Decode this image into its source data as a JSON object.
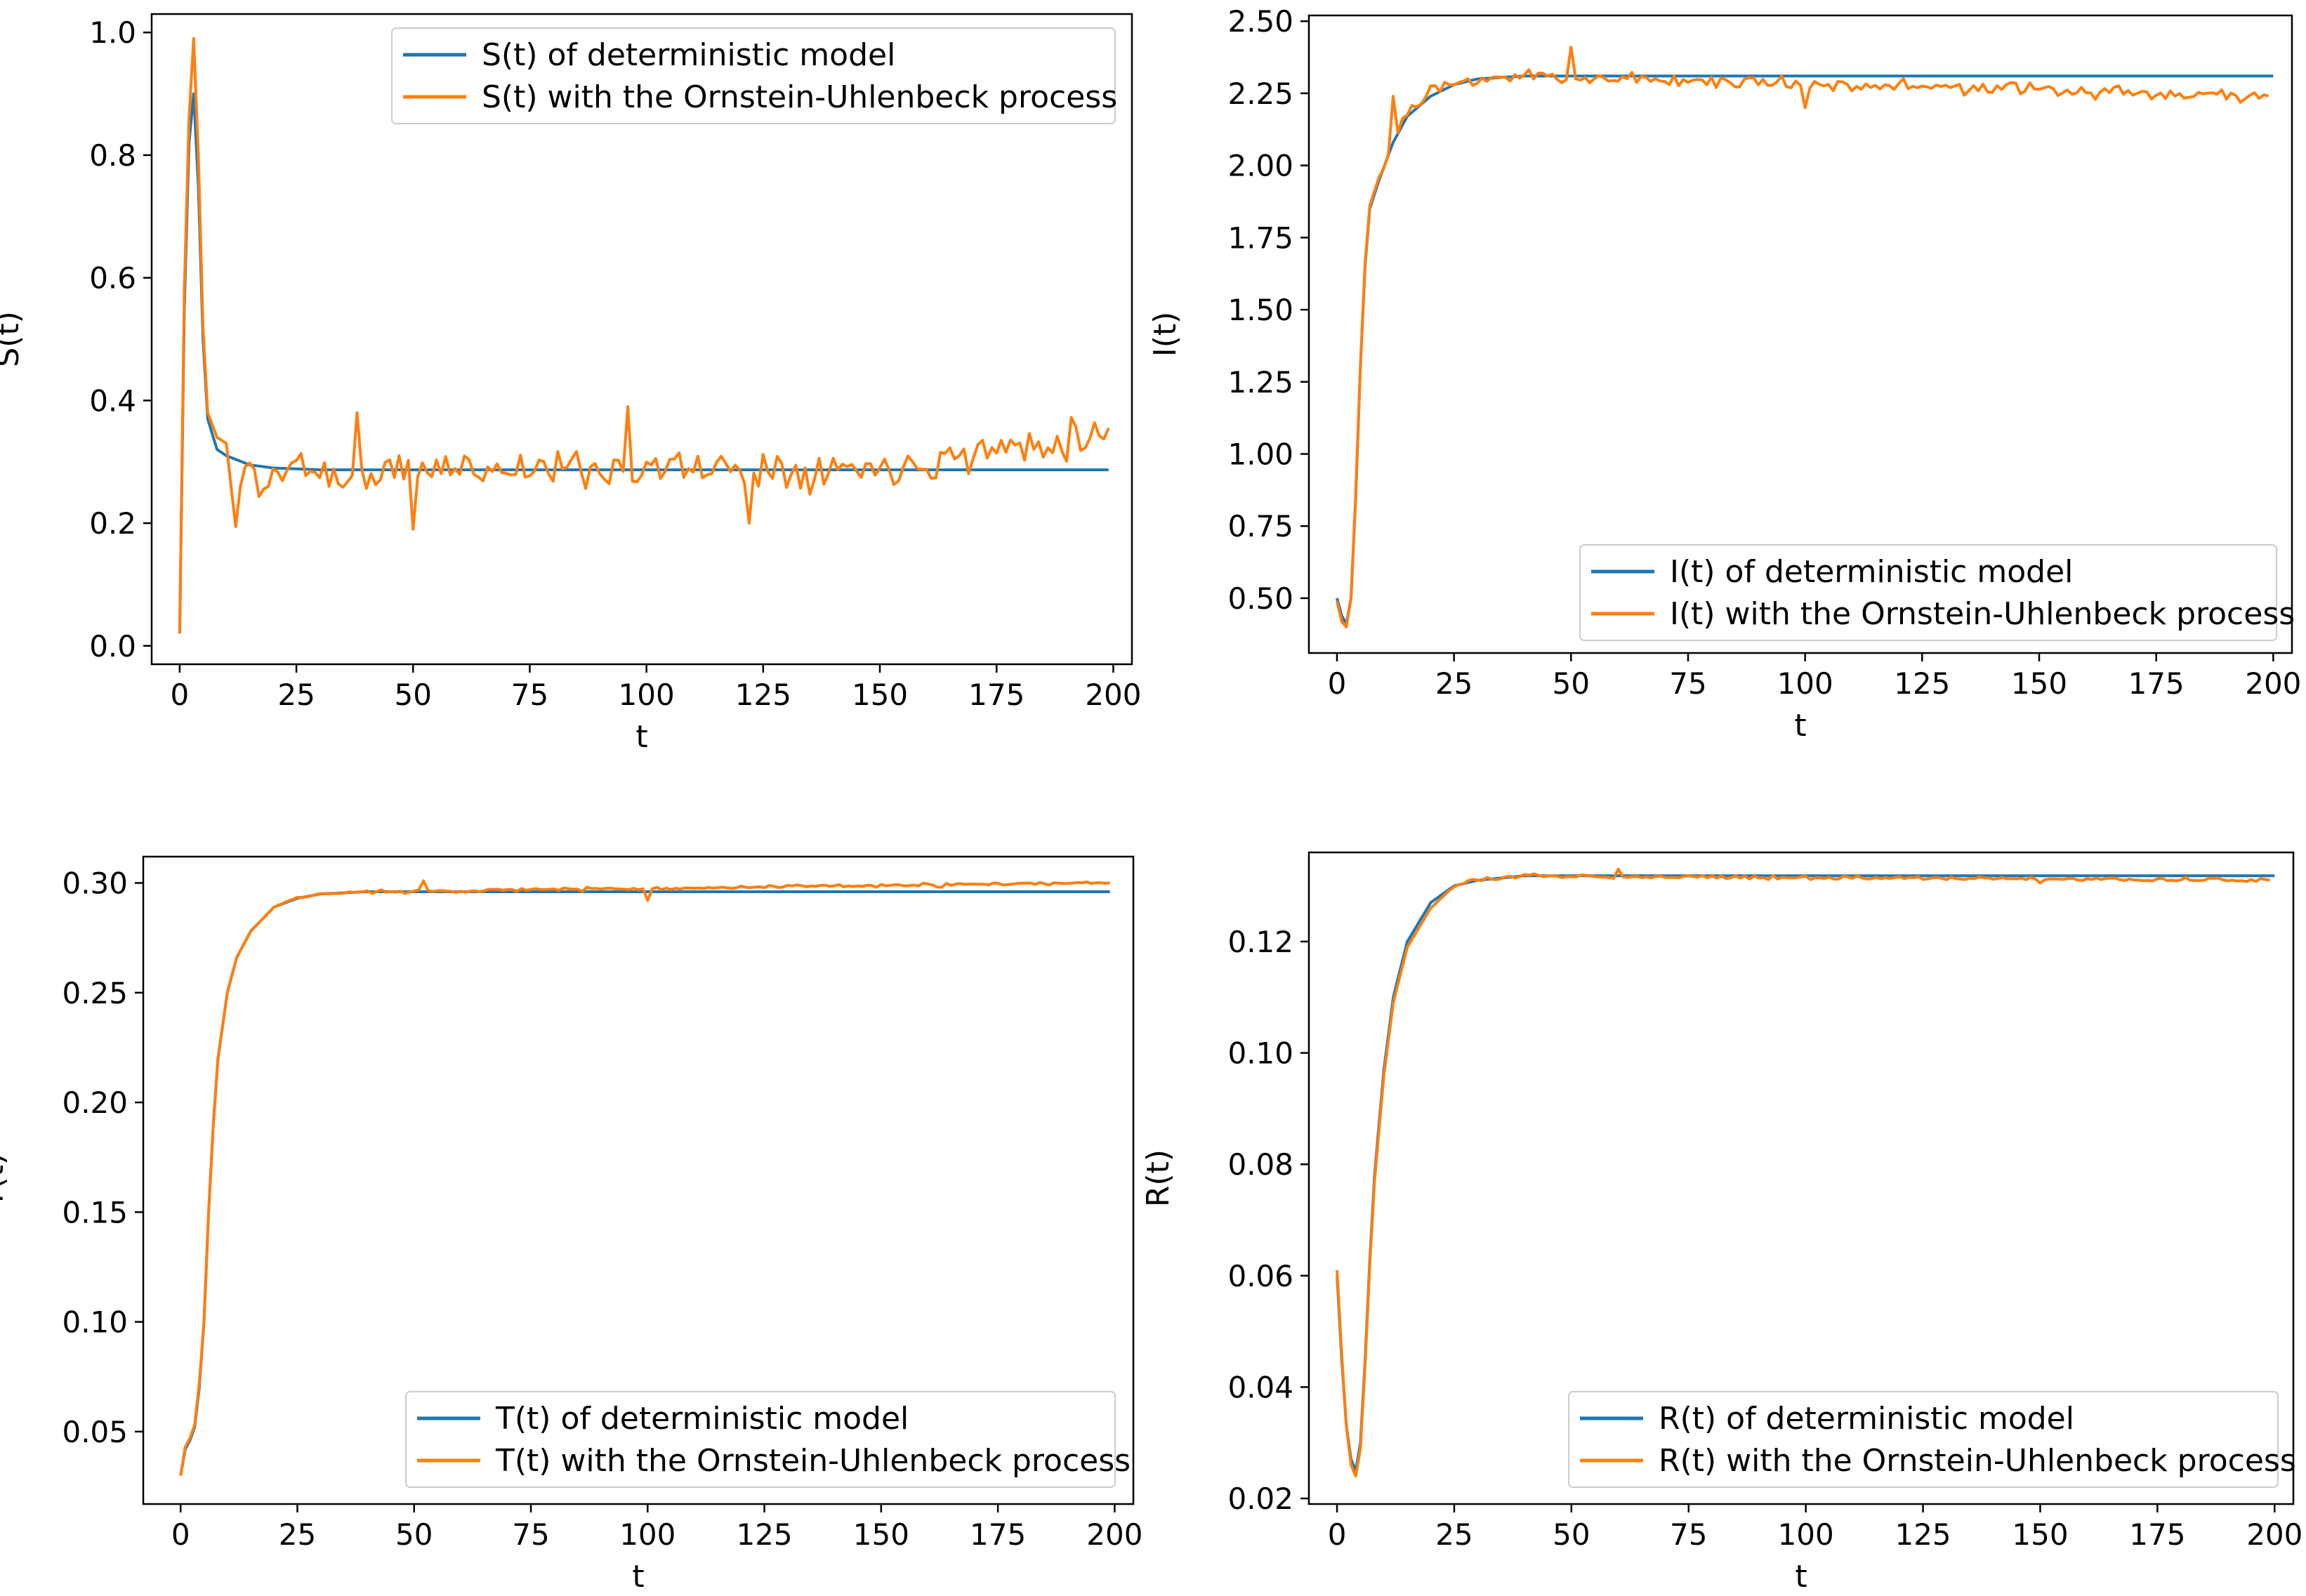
{
  "colors": {
    "deterministic": "#1f77b4",
    "ou": "#ff7f0e",
    "axes": "#000000"
  },
  "chart_data": [
    {
      "id": "S",
      "type": "line",
      "xlabel": "t",
      "ylabel": "S(t)",
      "xlim": [
        -6,
        204
      ],
      "ylim": [
        -0.03,
        1.03
      ],
      "xticks": [
        0,
        25,
        50,
        75,
        100,
        125,
        150,
        175,
        200
      ],
      "yticks": [
        0.0,
        0.2,
        0.4,
        0.6,
        0.8,
        1.0
      ],
      "ytick_labels": [
        "0.0",
        "0.2",
        "0.4",
        "0.6",
        "0.8",
        "1.0"
      ],
      "legend_position": "top-right",
      "series": [
        {
          "name": "S(t) of deterministic model",
          "color": "#1f77b4",
          "kind": "deterministic",
          "points": [
            [
              0,
              0.02
            ],
            [
              1,
              0.55
            ],
            [
              2,
              0.82
            ],
            [
              3,
              0.9
            ],
            [
              4,
              0.75
            ],
            [
              5,
              0.5
            ],
            [
              6,
              0.37
            ],
            [
              8,
              0.32
            ],
            [
              10,
              0.31
            ],
            [
              15,
              0.295
            ],
            [
              20,
              0.29
            ],
            [
              30,
              0.287
            ],
            [
              50,
              0.287
            ],
            [
              100,
              0.287
            ],
            [
              150,
              0.287
            ],
            [
              199,
              0.287
            ]
          ]
        },
        {
          "name": "S(t) with the Ornstein-Uhlenbeck process",
          "color": "#ff7f0e",
          "kind": "ou",
          "points": [
            [
              0,
              0.02
            ],
            [
              1,
              0.58
            ],
            [
              2,
              0.86
            ],
            [
              3,
              0.99
            ],
            [
              4,
              0.8
            ],
            [
              5,
              0.52
            ],
            [
              6,
              0.38
            ],
            [
              8,
              0.34
            ],
            [
              10,
              0.33
            ],
            [
              12,
              0.19
            ],
            [
              14,
              0.3
            ],
            [
              18,
              0.26
            ],
            [
              25,
              0.3
            ],
            [
              35,
              0.27
            ],
            [
              50,
              0.29
            ],
            [
              100,
              0.29
            ],
            [
              150,
              0.29
            ],
            [
              199,
              0.35
            ]
          ],
          "noise": {
            "amplitude": 0.045,
            "start": 12,
            "seed": 11,
            "extremes": [
              [
                38,
                0.38
              ],
              [
                50,
                0.19
              ],
              [
                96,
                0.39
              ],
              [
                122,
                0.2
              ],
              [
                199,
                0.355
              ]
            ]
          }
        }
      ]
    },
    {
      "id": "I",
      "type": "line",
      "xlabel": "t",
      "ylabel": "I(t)",
      "xlim": [
        -6,
        204
      ],
      "ylim": [
        0.31,
        2.52
      ],
      "xticks": [
        0,
        25,
        50,
        75,
        100,
        125,
        150,
        175,
        200
      ],
      "yticks": [
        0.5,
        0.75,
        1.0,
        1.25,
        1.5,
        1.75,
        2.0,
        2.25,
        2.5
      ],
      "ytick_labels": [
        "0.50",
        "0.75",
        "1.00",
        "1.25",
        "1.50",
        "1.75",
        "2.00",
        "2.25",
        "2.50"
      ],
      "legend_position": "bottom-right",
      "series": [
        {
          "name": "I(t) of deterministic model",
          "color": "#1f77b4",
          "kind": "deterministic",
          "points": [
            [
              0,
              0.5
            ],
            [
              1,
              0.44
            ],
            [
              2,
              0.41
            ],
            [
              3,
              0.5
            ],
            [
              4,
              0.85
            ],
            [
              5,
              1.3
            ],
            [
              6,
              1.65
            ],
            [
              7,
              1.85
            ],
            [
              9,
              1.95
            ],
            [
              12,
              2.08
            ],
            [
              15,
              2.17
            ],
            [
              20,
              2.24
            ],
            [
              25,
              2.28
            ],
            [
              30,
              2.3
            ],
            [
              40,
              2.31
            ],
            [
              200,
              2.31
            ]
          ]
        },
        {
          "name": "I(t) with the Ornstein-Uhlenbeck process",
          "color": "#ff7f0e",
          "kind": "ou",
          "points": [
            [
              0,
              0.49
            ],
            [
              1,
              0.42
            ],
            [
              2,
              0.4
            ],
            [
              3,
              0.5
            ],
            [
              4,
              0.86
            ],
            [
              5,
              1.3
            ],
            [
              6,
              1.66
            ],
            [
              7,
              1.86
            ],
            [
              9,
              1.96
            ],
            [
              12,
              2.1
            ],
            [
              15,
              2.18
            ],
            [
              20,
              2.25
            ],
            [
              25,
              2.28
            ],
            [
              30,
              2.3
            ],
            [
              40,
              2.31
            ],
            [
              199,
              2.24
            ]
          ],
          "noise": {
            "amplitude": 0.035,
            "start": 10,
            "seed": 23,
            "extremes": [
              [
                12,
                2.24
              ],
              [
                50,
                2.41
              ],
              [
                100,
                2.2
              ],
              [
                199,
                2.24
              ]
            ]
          }
        }
      ]
    },
    {
      "id": "T",
      "type": "line",
      "xlabel": "t",
      "ylabel": "T(t)",
      "xlim": [
        -8,
        204
      ],
      "ylim": [
        0.017,
        0.312
      ],
      "xticks": [
        0,
        25,
        50,
        75,
        100,
        125,
        150,
        175,
        200
      ],
      "yticks": [
        0.05,
        0.1,
        0.15,
        0.2,
        0.25,
        0.3
      ],
      "ytick_labels": [
        "0.05",
        "0.10",
        "0.15",
        "0.20",
        "0.25",
        "0.30"
      ],
      "legend_position": "bottom-right",
      "series": [
        {
          "name": "T(t) of deterministic model",
          "color": "#1f77b4",
          "kind": "deterministic",
          "points": [
            [
              0,
              0.03
            ],
            [
              1,
              0.042
            ],
            [
              2,
              0.046
            ],
            [
              3,
              0.052
            ],
            [
              4,
              0.07
            ],
            [
              5,
              0.1
            ],
            [
              6,
              0.15
            ],
            [
              7,
              0.19
            ],
            [
              8,
              0.22
            ],
            [
              10,
              0.25
            ],
            [
              12,
              0.266
            ],
            [
              15,
              0.278
            ],
            [
              20,
              0.289
            ],
            [
              25,
              0.293
            ],
            [
              30,
              0.295
            ],
            [
              40,
              0.296
            ],
            [
              200,
              0.296
            ]
          ]
        },
        {
          "name": "T(t) with the Ornstein-Uhlenbeck process",
          "color": "#ff7f0e",
          "kind": "ou",
          "points": [
            [
              0,
              0.03
            ],
            [
              1,
              0.043
            ],
            [
              2,
              0.047
            ],
            [
              3,
              0.053
            ],
            [
              4,
              0.072
            ],
            [
              5,
              0.1
            ],
            [
              6,
              0.15
            ],
            [
              7,
              0.19
            ],
            [
              8,
              0.22
            ],
            [
              10,
              0.25
            ],
            [
              12,
              0.266
            ],
            [
              15,
              0.278
            ],
            [
              20,
              0.289
            ],
            [
              25,
              0.293
            ],
            [
              30,
              0.295
            ],
            [
              40,
              0.296
            ],
            [
              199,
              0.3
            ]
          ],
          "noise": {
            "amplitude": 0.0012,
            "start": 20,
            "seed": 37,
            "extremes": [
              [
                52,
                0.301
              ],
              [
                100,
                0.292
              ],
              [
                199,
                0.3
              ]
            ]
          }
        }
      ]
    },
    {
      "id": "R",
      "type": "line",
      "xlabel": "t",
      "ylabel": "R(t)",
      "xlim": [
        -6,
        204
      ],
      "ylim": [
        0.019,
        0.136
      ],
      "xticks": [
        0,
        25,
        50,
        75,
        100,
        125,
        150,
        175,
        200
      ],
      "yticks": [
        0.02,
        0.04,
        0.06,
        0.08,
        0.1,
        0.12
      ],
      "ytick_labels": [
        "0.02",
        "0.04",
        "0.06",
        "0.08",
        "0.10",
        "0.12"
      ],
      "legend_position": "bottom-right",
      "series": [
        {
          "name": "R(t) of deterministic model",
          "color": "#1f77b4",
          "kind": "deterministic",
          "points": [
            [
              0,
              0.06
            ],
            [
              1,
              0.045
            ],
            [
              2,
              0.033
            ],
            [
              3,
              0.027
            ],
            [
              4,
              0.025
            ],
            [
              5,
              0.03
            ],
            [
              6,
              0.045
            ],
            [
              7,
              0.063
            ],
            [
              8,
              0.078
            ],
            [
              10,
              0.097
            ],
            [
              12,
              0.11
            ],
            [
              15,
              0.12
            ],
            [
              20,
              0.127
            ],
            [
              25,
              0.13
            ],
            [
              30,
              0.131
            ],
            [
              40,
              0.1318
            ],
            [
              200,
              0.1318
            ]
          ]
        },
        {
          "name": "R(t) with the Ornstein-Uhlenbeck process",
          "color": "#ff7f0e",
          "kind": "ou",
          "points": [
            [
              0,
              0.061
            ],
            [
              1,
              0.046
            ],
            [
              2,
              0.033
            ],
            [
              3,
              0.026
            ],
            [
              4,
              0.024
            ],
            [
              5,
              0.029
            ],
            [
              6,
              0.044
            ],
            [
              7,
              0.062
            ],
            [
              8,
              0.077
            ],
            [
              10,
              0.096
            ],
            [
              12,
              0.109
            ],
            [
              15,
              0.119
            ],
            [
              20,
              0.126
            ],
            [
              25,
              0.13
            ],
            [
              30,
              0.131
            ],
            [
              40,
              0.1318
            ],
            [
              199,
              0.131
            ]
          ],
          "noise": {
            "amplitude": 0.0005,
            "start": 25,
            "seed": 53,
            "extremes": [
              [
                60,
                0.133
              ],
              [
                150,
                0.1305
              ],
              [
                199,
                0.131
              ]
            ]
          }
        }
      ]
    }
  ]
}
